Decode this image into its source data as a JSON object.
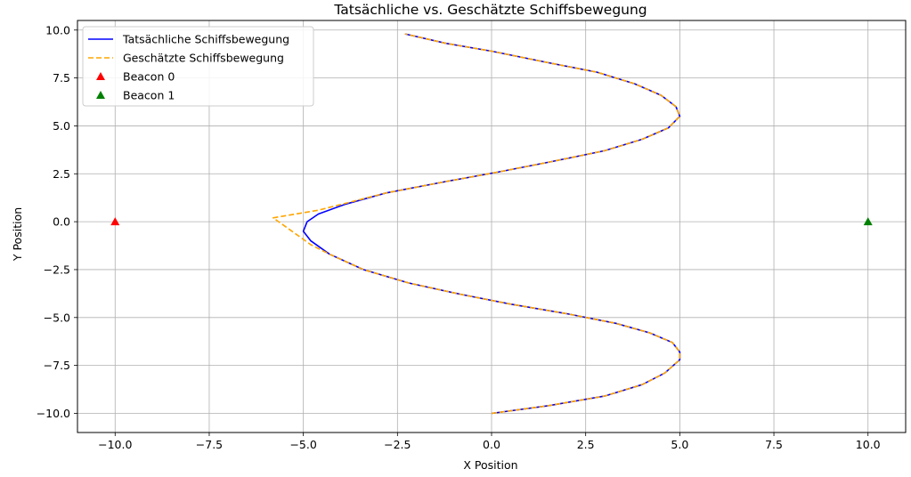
{
  "chart_data": {
    "type": "line",
    "title": "Tatsächliche vs. Geschätzte Schiffsbewegung",
    "xlabel": "X Position",
    "ylabel": "Y Position",
    "xlim": [
      -11.0,
      11.0
    ],
    "ylim": [
      -11.0,
      10.5
    ],
    "xticks": [
      -10.0,
      -7.5,
      -5.0,
      -2.5,
      0.0,
      2.5,
      5.0,
      7.5,
      10.0
    ],
    "yticks": [
      -10.0,
      -7.5,
      -5.0,
      -2.5,
      0.0,
      2.5,
      5.0,
      7.5,
      10.0
    ],
    "xtick_labels": [
      "−10.0",
      "−7.5",
      "−5.0",
      "−2.5",
      "0.0",
      "2.5",
      "5.0",
      "7.5",
      "10.0"
    ],
    "ytick_labels": [
      "−10.0",
      "−7.5",
      "−5.0",
      "−2.5",
      "0.0",
      "2.5",
      "5.0",
      "7.5",
      "10.0"
    ],
    "grid": true,
    "legend_position": "top-left",
    "series": [
      {
        "name": "Tatsächliche Schiffsbewegung",
        "style": "solid",
        "color": "#0000ff",
        "points": [
          [
            0.0,
            -10.0
          ],
          [
            1.5,
            -9.6
          ],
          [
            3.0,
            -9.1
          ],
          [
            4.0,
            -8.5
          ],
          [
            4.6,
            -7.9
          ],
          [
            5.0,
            -7.2
          ],
          [
            5.0,
            -6.8
          ],
          [
            4.8,
            -6.3
          ],
          [
            4.2,
            -5.8
          ],
          [
            3.3,
            -5.3
          ],
          [
            2.0,
            -4.8
          ],
          [
            0.5,
            -4.3
          ],
          [
            -0.8,
            -3.8
          ],
          [
            -2.2,
            -3.2
          ],
          [
            -3.4,
            -2.5
          ],
          [
            -4.3,
            -1.7
          ],
          [
            -4.8,
            -1.0
          ],
          [
            -5.0,
            -0.5
          ],
          [
            -4.9,
            0.0
          ],
          [
            -4.6,
            0.4
          ],
          [
            -3.9,
            0.9
          ],
          [
            -2.8,
            1.5
          ],
          [
            -1.2,
            2.1
          ],
          [
            0.2,
            2.6
          ],
          [
            1.5,
            3.1
          ],
          [
            3.0,
            3.7
          ],
          [
            4.0,
            4.3
          ],
          [
            4.7,
            4.9
          ],
          [
            5.0,
            5.5
          ],
          [
            4.9,
            6.0
          ],
          [
            4.5,
            6.6
          ],
          [
            3.8,
            7.2
          ],
          [
            2.8,
            7.8
          ],
          [
            1.5,
            8.3
          ],
          [
            0.0,
            8.9
          ],
          [
            -1.2,
            9.3
          ],
          [
            -2.3,
            9.8
          ]
        ]
      },
      {
        "name": "Geschätzte Schiffsbewegung",
        "style": "dashed",
        "color": "#ffa500",
        "points": [
          [
            0.0,
            -10.0
          ],
          [
            1.5,
            -9.6
          ],
          [
            3.0,
            -9.1
          ],
          [
            4.0,
            -8.5
          ],
          [
            4.6,
            -7.9
          ],
          [
            5.0,
            -7.2
          ],
          [
            5.0,
            -6.8
          ],
          [
            4.8,
            -6.3
          ],
          [
            4.2,
            -5.8
          ],
          [
            3.3,
            -5.3
          ],
          [
            2.0,
            -4.8
          ],
          [
            0.5,
            -4.3
          ],
          [
            -0.8,
            -3.8
          ],
          [
            -2.2,
            -3.2
          ],
          [
            -3.4,
            -2.5
          ],
          [
            -4.3,
            -1.7
          ],
          [
            -4.8,
            -1.2
          ],
          [
            -5.8,
            0.2
          ],
          [
            -4.6,
            0.6
          ],
          [
            -3.8,
            1.0
          ],
          [
            -2.8,
            1.5
          ],
          [
            -1.2,
            2.1
          ],
          [
            0.2,
            2.6
          ],
          [
            1.5,
            3.1
          ],
          [
            3.0,
            3.7
          ],
          [
            4.0,
            4.3
          ],
          [
            4.7,
            4.9
          ],
          [
            5.0,
            5.5
          ],
          [
            4.9,
            6.0
          ],
          [
            4.5,
            6.6
          ],
          [
            3.8,
            7.2
          ],
          [
            2.8,
            7.8
          ],
          [
            1.5,
            8.3
          ],
          [
            0.0,
            8.9
          ],
          [
            -1.2,
            9.3
          ],
          [
            -2.3,
            9.8
          ]
        ]
      }
    ],
    "markers": [
      {
        "name": "Beacon 0",
        "x": -10.0,
        "y": 0.0,
        "color": "#ff0000",
        "shape": "triangle"
      },
      {
        "name": "Beacon 1",
        "x": 10.0,
        "y": 0.0,
        "color": "#008000",
        "shape": "triangle"
      }
    ]
  }
}
